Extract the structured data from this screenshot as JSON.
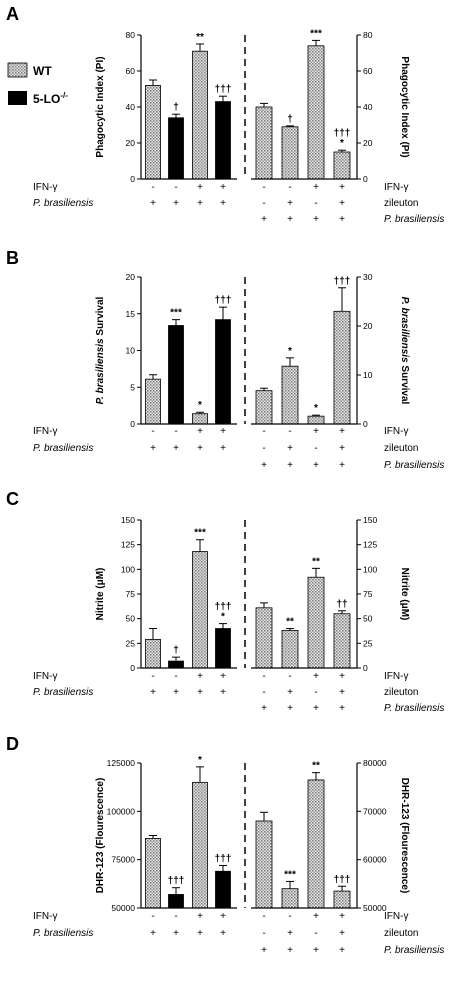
{
  "legend": {
    "wt_label": "WT",
    "ko_label": "5-LO",
    "ko_sup": "-/-"
  },
  "colors": {
    "wt_fill": "#c8c8c8",
    "ko_fill": "#000000"
  },
  "chart_data": [
    {
      "panel": "A",
      "type": "bar",
      "left": {
        "ylabel": "Phagocytic Index (PI)",
        "ylim": [
          0,
          80
        ],
        "ticks": [
          0,
          20,
          40,
          60,
          80
        ],
        "tick_labels": [
          "0",
          "20",
          "40",
          "60",
          "80"
        ],
        "bars": [
          {
            "group": "WT",
            "value": 52,
            "err": 3,
            "sig": ""
          },
          {
            "group": "5-LO-/-",
            "value": 34,
            "err": 2,
            "sig": "†"
          },
          {
            "group": "WT",
            "value": 71,
            "err": 4,
            "sig": "**"
          },
          {
            "group": "5-LO-/-",
            "value": 43,
            "err": 3,
            "sig": "†††"
          }
        ],
        "conditions": [
          {
            "label": "IFN-γ",
            "signs": [
              "-",
              "-",
              "+",
              "+"
            ]
          },
          {
            "label": "P. brasiliensis",
            "signs": [
              "+",
              "+",
              "+",
              "+"
            ]
          }
        ]
      },
      "right": {
        "ylabel": "Phagocytic Index (PI)",
        "ylim": [
          0,
          80
        ],
        "ticks": [
          0,
          20,
          40,
          60,
          80
        ],
        "tick_labels": [
          "0",
          "20",
          "40",
          "60",
          "80"
        ],
        "bars": [
          {
            "group": "WT",
            "value": 40,
            "err": 2,
            "sig": ""
          },
          {
            "group": "WT",
            "value": 29,
            "err": 0.5,
            "sig": "†"
          },
          {
            "group": "WT",
            "value": 74,
            "err": 3,
            "sig": "***"
          },
          {
            "group": "WT",
            "value": 15,
            "err": 1,
            "sig": "†††\n*"
          }
        ],
        "conditions": [
          {
            "label": "IFN-γ",
            "signs": [
              "-",
              "-",
              "+",
              "+"
            ]
          },
          {
            "label": "zileuton",
            "signs": [
              "-",
              "+",
              "-",
              "+"
            ]
          },
          {
            "label": "P. brasiliensis",
            "signs": [
              "+",
              "+",
              "+",
              "+"
            ]
          }
        ]
      }
    },
    {
      "panel": "B",
      "type": "bar",
      "left": {
        "ylabel": "P. brasiliensis Survival",
        "ylim": [
          0,
          20
        ],
        "ticks": [
          0,
          5,
          10,
          15,
          20
        ],
        "tick_labels": [
          "0",
          "5",
          "10",
          "15",
          "20"
        ],
        "bars": [
          {
            "group": "WT",
            "value": 6.1,
            "err": 0.6,
            "sig": ""
          },
          {
            "group": "5-LO-/-",
            "value": 13.4,
            "err": 0.8,
            "sig": "***"
          },
          {
            "group": "WT",
            "value": 1.4,
            "err": 0.2,
            "sig": "*"
          },
          {
            "group": "5-LO-/-",
            "value": 14.2,
            "err": 1.7,
            "sig": "†††"
          }
        ],
        "conditions": [
          {
            "label": "IFN-γ",
            "signs": [
              "-",
              "-",
              "+",
              "+"
            ]
          },
          {
            "label": "P. brasiliensis",
            "signs": [
              "+",
              "+",
              "+",
              "+"
            ]
          }
        ]
      },
      "right": {
        "ylabel": "P. brasiliensis Survival",
        "ylim": [
          0,
          30
        ],
        "ticks": [
          0,
          10,
          20,
          30
        ],
        "tick_labels": [
          "0",
          "10",
          "20",
          "30"
        ],
        "bars": [
          {
            "group": "WT",
            "value": 6.8,
            "err": 0.5,
            "sig": ""
          },
          {
            "group": "WT",
            "value": 11.8,
            "err": 1.7,
            "sig": "*"
          },
          {
            "group": "WT",
            "value": 1.6,
            "err": 0.2,
            "sig": "*"
          },
          {
            "group": "WT",
            "value": 23,
            "err": 4.8,
            "sig": "†††"
          }
        ],
        "conditions": [
          {
            "label": "IFN-γ",
            "signs": [
              "-",
              "-",
              "+",
              "+"
            ]
          },
          {
            "label": "zileuton",
            "signs": [
              "-",
              "+",
              "-",
              "+"
            ]
          },
          {
            "label": "P. brasiliensis",
            "signs": [
              "+",
              "+",
              "+",
              "+"
            ]
          }
        ]
      }
    },
    {
      "panel": "C",
      "type": "bar",
      "left": {
        "ylabel": "Nitrite (μM)",
        "ylim": [
          0,
          150
        ],
        "ticks": [
          0,
          25,
          50,
          75,
          100,
          125,
          150
        ],
        "tick_labels": [
          "0",
          "25",
          "50",
          "75",
          "100",
          "125",
          "150"
        ],
        "bars": [
          {
            "group": "WT",
            "value": 29,
            "err": 11,
            "sig": ""
          },
          {
            "group": "5-LO-/-",
            "value": 7,
            "err": 4,
            "sig": "†"
          },
          {
            "group": "WT",
            "value": 118,
            "err": 12,
            "sig": "***"
          },
          {
            "group": "5-LO-/-",
            "value": 40,
            "err": 5,
            "sig": "†††\n*"
          }
        ],
        "conditions": [
          {
            "label": "IFN-γ",
            "signs": [
              "-",
              "-",
              "+",
              "+"
            ]
          },
          {
            "label": "P. brasiliensis",
            "signs": [
              "+",
              "+",
              "+",
              "+"
            ]
          }
        ]
      },
      "right": {
        "ylabel": "Nitrite (μM)",
        "ylim": [
          0,
          150
        ],
        "ticks": [
          0,
          25,
          50,
          75,
          100,
          125,
          150
        ],
        "tick_labels": [
          "0",
          "25",
          "50",
          "75",
          "100",
          "125",
          "150"
        ],
        "bars": [
          {
            "group": "WT",
            "value": 61,
            "err": 5,
            "sig": ""
          },
          {
            "group": "WT",
            "value": 38,
            "err": 2,
            "sig": "**"
          },
          {
            "group": "WT",
            "value": 92,
            "err": 9,
            "sig": "**"
          },
          {
            "group": "WT",
            "value": 55,
            "err": 3,
            "sig": "††"
          }
        ],
        "conditions": [
          {
            "label": "IFN-γ",
            "signs": [
              "-",
              "-",
              "+",
              "+"
            ]
          },
          {
            "label": "zileuton",
            "signs": [
              "-",
              "+",
              "-",
              "+"
            ]
          },
          {
            "label": "P. brasiliensis",
            "signs": [
              "+",
              "+",
              "+",
              "+"
            ]
          }
        ]
      }
    },
    {
      "panel": "D",
      "type": "bar",
      "left": {
        "ylabel": "DHR-123 (Flourescence)",
        "ylim": [
          50000,
          125000
        ],
        "ticks": [
          50000,
          75000,
          100000,
          125000
        ],
        "tick_labels": [
          "50000",
          "75000",
          "100000",
          "125000"
        ],
        "bars": [
          {
            "group": "WT",
            "value": 86000,
            "err": 1500,
            "sig": ""
          },
          {
            "group": "5-LO-/-",
            "value": 57000,
            "err": 3500,
            "sig": "†††"
          },
          {
            "group": "WT",
            "value": 115000,
            "err": 8000,
            "sig": "*"
          },
          {
            "group": "5-LO-/-",
            "value": 69000,
            "err": 3000,
            "sig": "†††"
          }
        ],
        "conditions": [
          {
            "label": "IFN-γ",
            "signs": [
              "-",
              "-",
              "+",
              "+"
            ]
          },
          {
            "label": "P. brasiliensis",
            "signs": [
              "+",
              "+",
              "+",
              "+"
            ]
          }
        ]
      },
      "right": {
        "ylabel": "DHR-123 (Flourescence)",
        "ylim": [
          50000,
          80000
        ],
        "ticks": [
          50000,
          60000,
          70000,
          80000
        ],
        "tick_labels": [
          "50000",
          "60000",
          "70000",
          "80000"
        ],
        "bars": [
          {
            "group": "WT",
            "value": 68000,
            "err": 1800,
            "sig": ""
          },
          {
            "group": "WT",
            "value": 54000,
            "err": 1500,
            "sig": "***"
          },
          {
            "group": "WT",
            "value": 76500,
            "err": 1500,
            "sig": "**"
          },
          {
            "group": "WT",
            "value": 53500,
            "err": 1000,
            "sig": "†††"
          }
        ],
        "conditions": [
          {
            "label": "IFN-γ",
            "signs": [
              "-",
              "-",
              "+",
              "+"
            ]
          },
          {
            "label": "zileuton",
            "signs": [
              "-",
              "+",
              "-",
              "+"
            ]
          },
          {
            "label": "P. brasiliensis",
            "signs": [
              "+",
              "+",
              "+",
              "+"
            ]
          }
        ]
      }
    }
  ]
}
